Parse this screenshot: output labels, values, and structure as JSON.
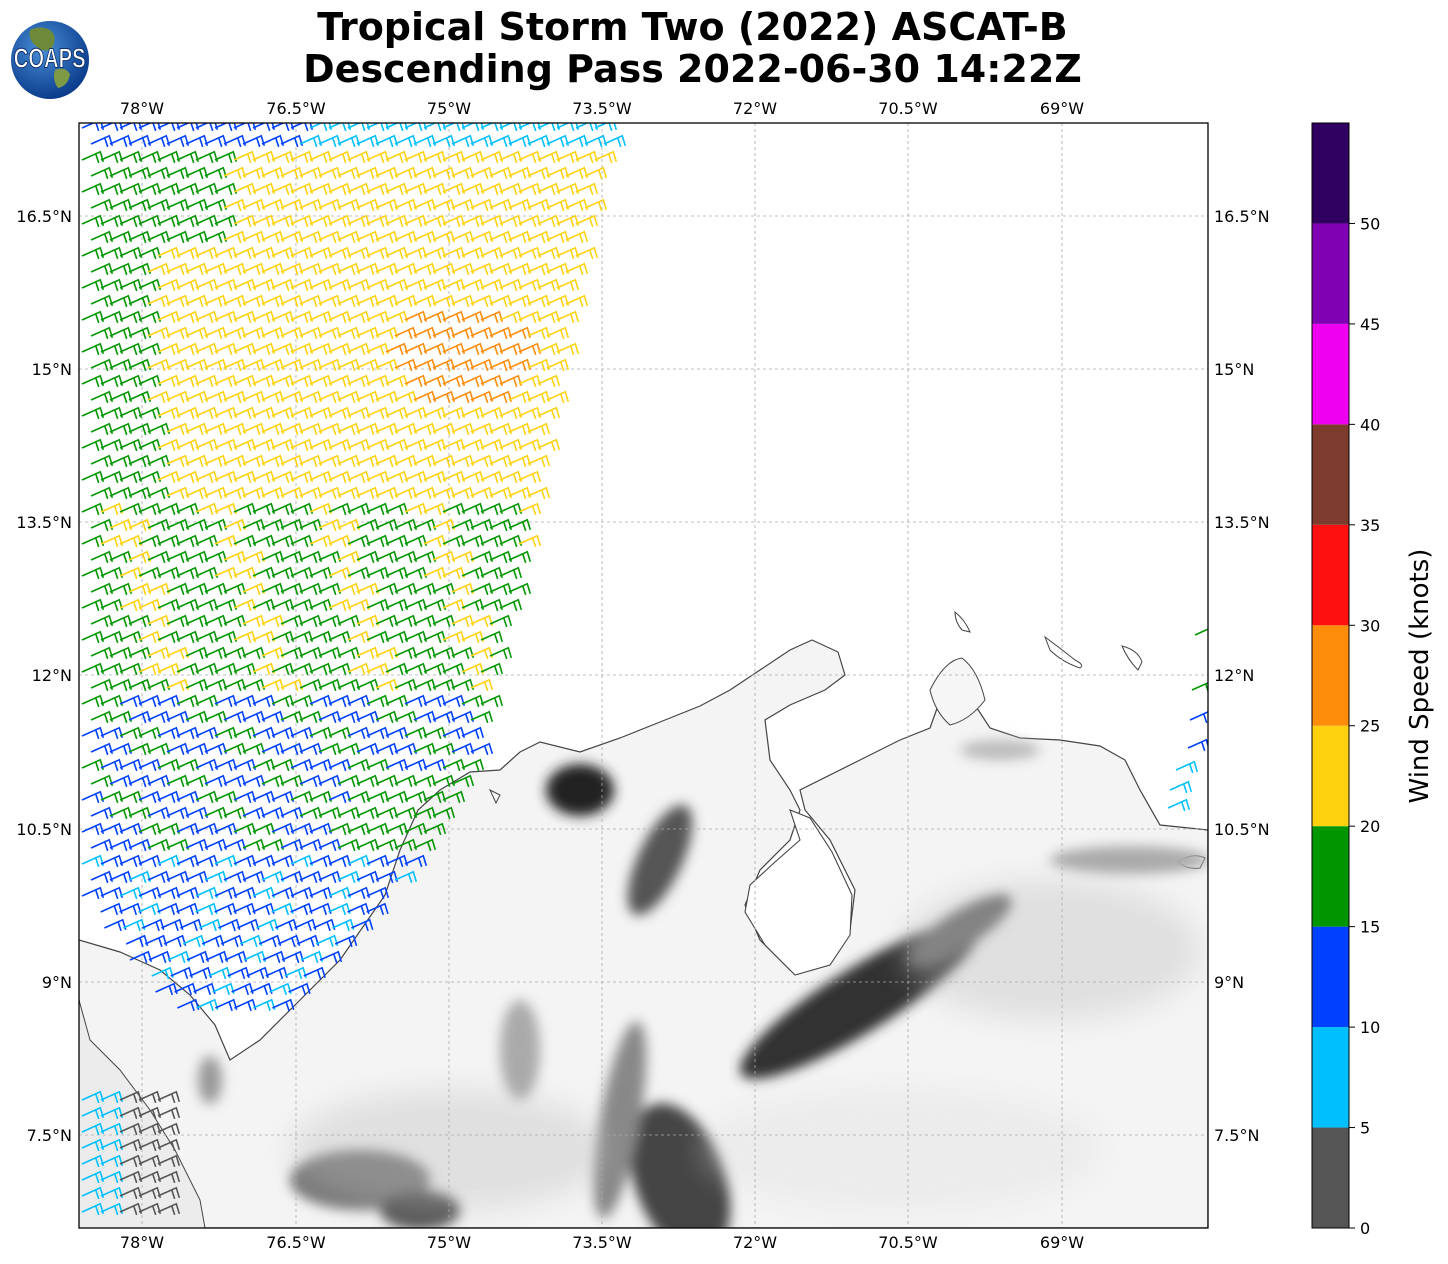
{
  "header": {
    "logo_text": "COAPS",
    "title_line1": "Tropical Storm Two (2022) ASCAT-B",
    "title_line2": "Descending Pass 2022-06-30 14:22Z"
  },
  "map": {
    "lon_ticks": [
      "78°W",
      "76.5°W",
      "75°W",
      "73.5°W",
      "72°W",
      "70.5°W",
      "69°W"
    ],
    "lat_ticks": [
      "16.5°N",
      "15°N",
      "13.5°N",
      "12°N",
      "10.5°N",
      "9°N",
      "7.5°N"
    ],
    "extent": {
      "lon_min": -78.63,
      "lon_max": -67.6,
      "lat_min": 6.6,
      "lat_max": 17.4
    },
    "gridlines": true,
    "land_background": "grayscale terrain elevation"
  },
  "colorbar": {
    "label": "Wind Speed (knots)",
    "bins": [
      {
        "min": 0,
        "max": 5,
        "color": "#555555"
      },
      {
        "min": 5,
        "max": 10,
        "color": "#00bfff"
      },
      {
        "min": 10,
        "max": 15,
        "color": "#0040ff"
      },
      {
        "min": 15,
        "max": 20,
        "color": "#009600"
      },
      {
        "min": 20,
        "max": 25,
        "color": "#ffd20f"
      },
      {
        "min": 25,
        "max": 30,
        "color": "#ff8c0a"
      },
      {
        "min": 30,
        "max": 35,
        "color": "#ff1010"
      },
      {
        "min": 35,
        "max": 40,
        "color": "#7d3c2d"
      },
      {
        "min": 40,
        "max": 45,
        "color": "#f000f0"
      },
      {
        "min": 45,
        "max": 50,
        "color": "#8000b4"
      },
      {
        "min": 50,
        "max": 55,
        "color": "#300060"
      }
    ],
    "tick_labels": [
      "0",
      "5",
      "10",
      "15",
      "20",
      "25",
      "30",
      "35",
      "40",
      "45",
      "50"
    ]
  }
}
